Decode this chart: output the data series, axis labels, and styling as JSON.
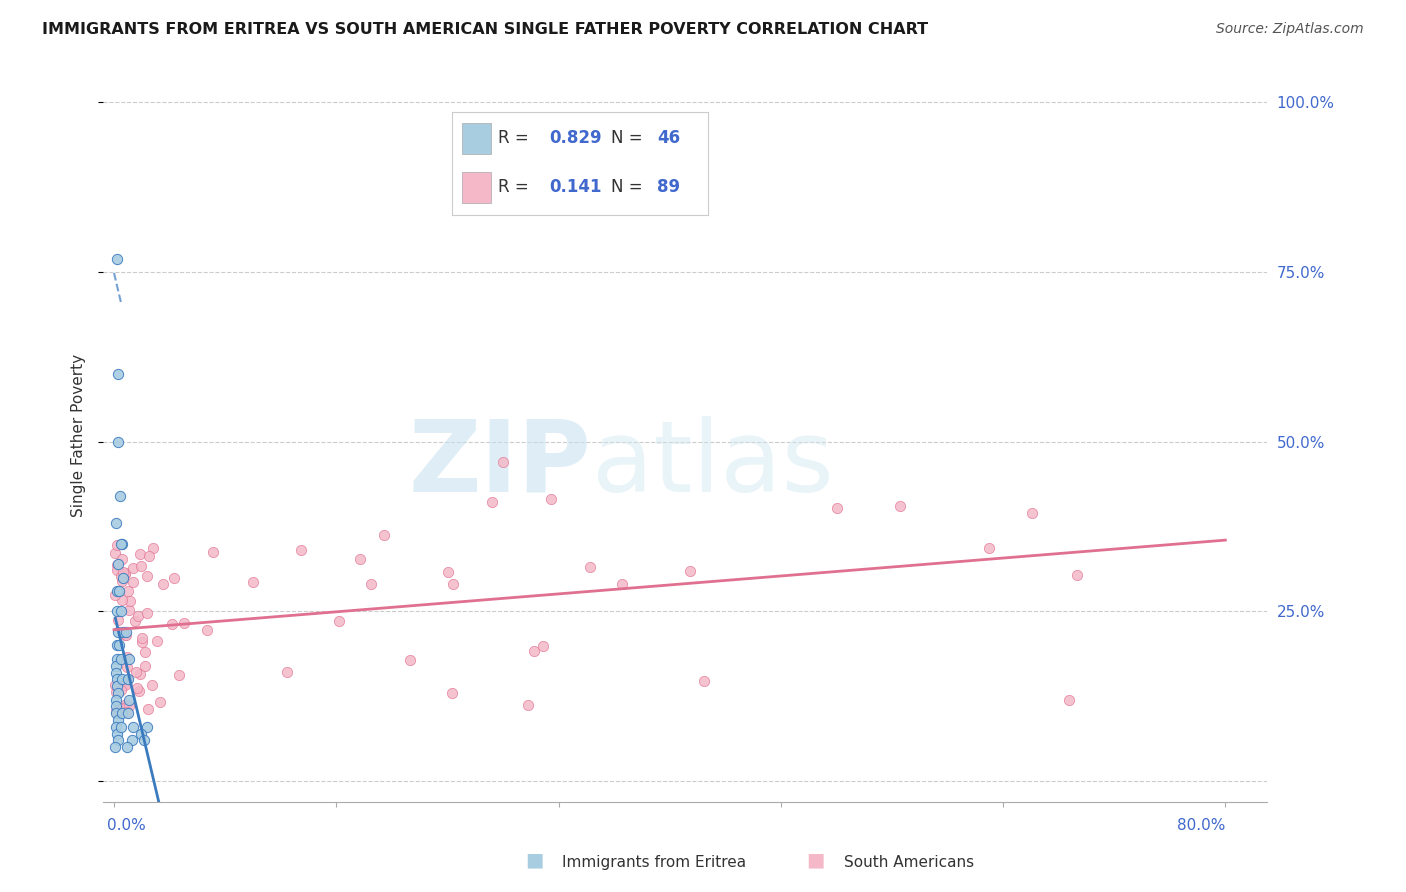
{
  "title": "IMMIGRANTS FROM ERITREA VS SOUTH AMERICAN SINGLE FATHER POVERTY CORRELATION CHART",
  "source": "Source: ZipAtlas.com",
  "ylabel": "Single Father Poverty",
  "xlim": [
    0,
    0.8
  ],
  "ylim": [
    -0.03,
    1.05
  ],
  "ytick_vals": [
    0.0,
    0.25,
    0.5,
    0.75,
    1.0
  ],
  "ytick_labels": [
    "",
    "25.0%",
    "50.0%",
    "75.0%",
    "100.0%"
  ],
  "legend_R1": "0.829",
  "legend_N1": "46",
  "legend_R2": "0.141",
  "legend_N2": "89",
  "color_eritrea_fill": "#a8cce0",
  "color_eritrea_line": "#3a7abf",
  "color_south_fill": "#f4b8c8",
  "color_south_line": "#e07090",
  "color_blue_text": "#4169CD",
  "color_dark_text": "#333333",
  "color_grey": "#aaaaaa",
  "color_grid": "#cccccc",
  "background_color": "#ffffff",
  "watermark_zip": "ZIP",
  "watermark_atlas": "atlas"
}
